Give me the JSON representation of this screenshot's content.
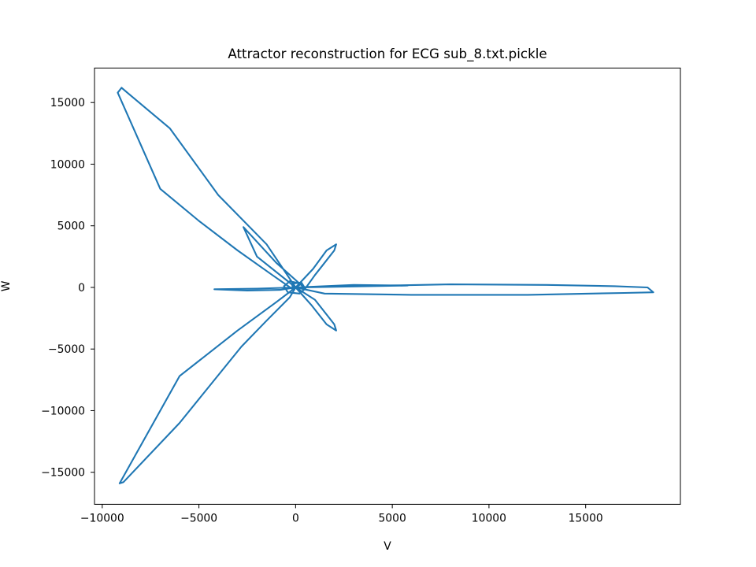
{
  "chart_data": {
    "type": "line",
    "title": "Attractor reconstruction for ECG sub_8.txt.pickle",
    "xlabel": "V",
    "ylabel": "W",
    "xlim": [
      -10400,
      19900
    ],
    "ylim": [
      -17600,
      17800
    ],
    "xticks": [
      -10000,
      -5000,
      0,
      5000,
      10000,
      15000
    ],
    "xtick_labels": [
      "−10000",
      "−5000",
      "0",
      "5000",
      "10000",
      "15000"
    ],
    "yticks": [
      -15000,
      -10000,
      -5000,
      0,
      5000,
      10000,
      15000
    ],
    "ytick_labels": [
      "−15000",
      "−10000",
      "−5000",
      "0",
      "5000",
      "10000",
      "15000"
    ],
    "grid": false,
    "line_color": "#1f77b4",
    "series": [
      {
        "points": [
          [
            0,
            0
          ],
          [
            300,
            300
          ],
          [
            -300,
            500
          ],
          [
            -600,
            100
          ],
          [
            -400,
            -400
          ],
          [
            200,
            -500
          ],
          [
            500,
            -100
          ],
          [
            300,
            400
          ],
          [
            -200,
            300
          ],
          [
            -100,
            -200
          ],
          [
            -1200,
            1000
          ],
          [
            -3000,
            3000
          ],
          [
            -5000,
            5400
          ],
          [
            -7000,
            8000
          ],
          [
            -9200,
            15800
          ],
          [
            -9000,
            16200
          ],
          [
            -8700,
            15800
          ],
          [
            -6500,
            12900
          ],
          [
            -4000,
            7500
          ],
          [
            -1500,
            3500
          ],
          [
            0,
            0
          ],
          [
            -2000,
            2500
          ],
          [
            -2700,
            4900
          ],
          [
            -1000,
            2000
          ],
          [
            500,
            -100
          ],
          [
            1000,
            1000
          ],
          [
            1500,
            2000
          ],
          [
            2000,
            3000
          ],
          [
            2100,
            3500
          ],
          [
            1600,
            3000
          ],
          [
            900,
            1500
          ],
          [
            0,
            0
          ],
          [
            1000,
            -1000
          ],
          [
            1600,
            -2200
          ],
          [
            2000,
            -3000
          ],
          [
            2100,
            -3500
          ],
          [
            1600,
            -3000
          ],
          [
            800,
            -1400
          ],
          [
            0,
            0
          ],
          [
            -1000,
            -1200
          ],
          [
            -3000,
            -3500
          ],
          [
            -6000,
            -7200
          ],
          [
            -9100,
            -15900
          ],
          [
            -8900,
            -15800
          ],
          [
            -6000,
            -11000
          ],
          [
            -2800,
            -4800
          ],
          [
            -1500,
            -2700
          ],
          [
            -300,
            -800
          ],
          [
            0,
            0
          ],
          [
            3000,
            100
          ],
          [
            8000,
            250
          ],
          [
            13000,
            200
          ],
          [
            16500,
            100
          ],
          [
            18200,
            0
          ],
          [
            18500,
            -400
          ],
          [
            17000,
            -450
          ],
          [
            12000,
            -600
          ],
          [
            6000,
            -600
          ],
          [
            1500,
            -500
          ],
          [
            0,
            0
          ],
          [
            3000,
            200
          ],
          [
            5800,
            150
          ],
          [
            2000,
            50
          ],
          [
            0,
            0
          ],
          [
            -2000,
            -100
          ],
          [
            -4200,
            -150
          ],
          [
            -2500,
            -250
          ],
          [
            -800,
            -200
          ],
          [
            0,
            0
          ]
        ]
      }
    ]
  }
}
